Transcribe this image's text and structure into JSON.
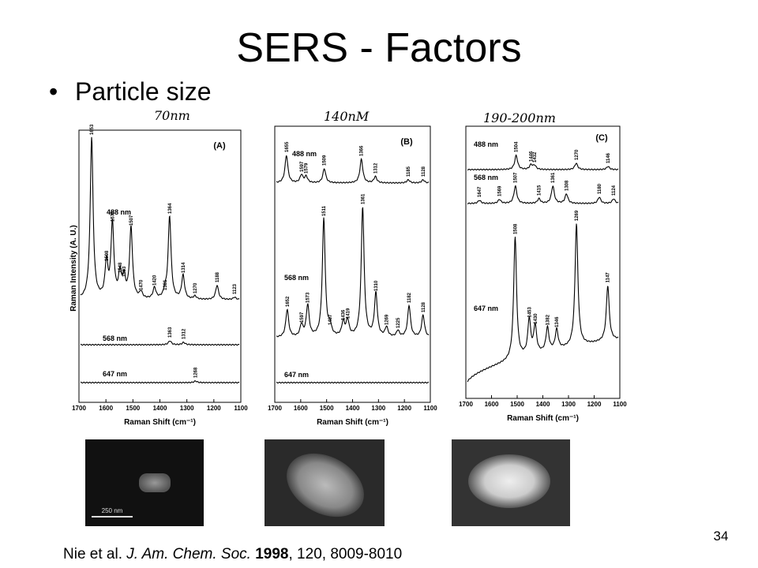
{
  "title": "SERS - Factors",
  "bullet": "Particle size",
  "y_axis_label": "Raman Intensity (A. U.)",
  "panels": [
    {
      "handwritten": "70nm",
      "letter": "(A)",
      "x_axis_label": "Raman Shift (cm⁻¹)",
      "x_ticks": [
        "1700",
        "1600",
        "1500",
        "1400",
        "1300",
        "1200",
        "1100"
      ],
      "traces": [
        {
          "label": "488 nm",
          "peaks": [
            "1653",
            "1598",
            "1576",
            "1548",
            "1533",
            "1507",
            "1470",
            "1420",
            "1381",
            "1364",
            "1314",
            "1270",
            "1188",
            "1123"
          ]
        },
        {
          "label": "568 nm",
          "peaks": [
            "1363",
            "1312"
          ]
        },
        {
          "label": "647 nm",
          "peaks": [
            "1268"
          ]
        }
      ]
    },
    {
      "handwritten": "140nM",
      "letter": "(B)",
      "x_axis_label": "Raman Shift (cm⁻¹)",
      "x_ticks": [
        "1700",
        "1600",
        "1500",
        "1400",
        "1300",
        "1200",
        "1100"
      ],
      "traces": [
        {
          "label": "488 nm",
          "peaks": [
            "1655",
            "1597",
            "1579",
            "1509",
            "1366",
            "1312",
            "1185",
            "1128"
          ]
        },
        {
          "label": "568 nm",
          "peaks": [
            "1652",
            "1597",
            "1573",
            "1511",
            "1487",
            "1436",
            "1419",
            "1361",
            "1310",
            "1269",
            "1225",
            "1182",
            "1128"
          ]
        },
        {
          "label": "647 nm",
          "peaks": []
        }
      ]
    },
    {
      "handwritten": "190-200nm",
      "letter": "(C)",
      "x_axis_label": "Raman Shift (cm⁻¹)",
      "x_ticks": [
        "1700",
        "1600",
        "1500",
        "1400",
        "1300",
        "1200",
        "1100"
      ],
      "traces": [
        {
          "label": "488 nm",
          "peaks": [
            "1504",
            "1446",
            "1432",
            "1270",
            "1146"
          ]
        },
        {
          "label": "568 nm",
          "peaks": [
            "1647",
            "1569",
            "1507",
            "1415",
            "1361",
            "1308",
            "1180",
            "1124"
          ]
        },
        {
          "label": "647 nm",
          "peaks": [
            "1508",
            "1453",
            "1430",
            "1382",
            "1346",
            "1269",
            "1147"
          ]
        }
      ]
    }
  ],
  "scale_bar": "250 nm",
  "citation": {
    "authors": "Nie et al.",
    "journal": "J. Am. Chem. Soc.",
    "year": "1998",
    "rest": ", 120, 8009-8010"
  },
  "page_number": "34"
}
